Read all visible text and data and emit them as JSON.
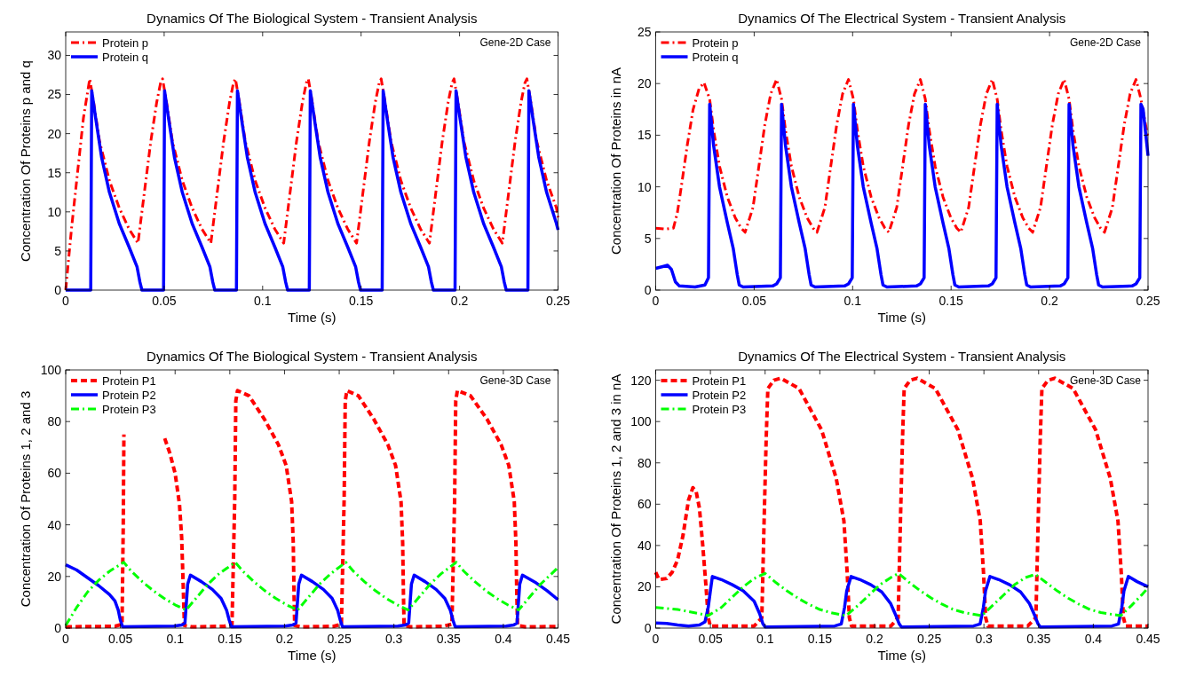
{
  "chart_data": [
    {
      "type": "line",
      "title": "Dynamics Of The Biological System - Transient Analysis",
      "xlabel": "Time (s)",
      "ylabel": "Concentration Of Proteins p and q",
      "annotations": [
        "Gene-2D Case"
      ],
      "xlim": [
        0,
        0.25
      ],
      "ylim": [
        0,
        33
      ],
      "xticks": [
        0,
        0.05,
        0.1,
        0.15,
        0.2,
        0.25
      ],
      "yticks": [
        0,
        5,
        10,
        15,
        20,
        25,
        30
      ],
      "legend": "top left",
      "series": [
        {
          "name": "Protein p",
          "color": "#ff0000",
          "line_style": "dashdot",
          "x": [
            0,
            0.003,
            0.006,
            0.009,
            0.0122,
            0.0142,
            0.0172,
            0.0222,
            0.0272,
            0.0322,
            0.0367,
            0.0382,
            0.0402,
            0.0432,
            0.0462,
            0.0482,
            0.0492,
            0.0512,
            0.0542,
            0.0592,
            0.0642,
            0.0692,
            0.0737,
            0.0752,
            0.0772,
            0.0802,
            0.0832,
            0.0852,
            0.0862,
            0.0882,
            0.0912,
            0.0962,
            0.1012,
            0.1062,
            0.1107,
            0.1122,
            0.1142,
            0.1172,
            0.1202,
            0.1222,
            0.1232,
            0.1252,
            0.1282,
            0.1332,
            0.1382,
            0.1432,
            0.1477,
            0.1492,
            0.1512,
            0.1542,
            0.1572,
            0.1592,
            0.1602,
            0.1622,
            0.1652,
            0.1702,
            0.1752,
            0.1802,
            0.1847,
            0.1862,
            0.1882,
            0.1912,
            0.1942,
            0.1962,
            0.1972,
            0.1992,
            0.2022,
            0.2072,
            0.2122,
            0.2172,
            0.2217,
            0.2232,
            0.2252,
            0.2282,
            0.2312,
            0.2332,
            0.2342,
            0.2362,
            0.2392,
            0.2442,
            0.2492,
            0.25
          ],
          "values": [
            0,
            8,
            15,
            22,
            27,
            24,
            19,
            14,
            10.5,
            7.8,
            6,
            9,
            13,
            19,
            24,
            26.5,
            27,
            24,
            19,
            14,
            10.5,
            7.8,
            6,
            9,
            13,
            19,
            24,
            26.5,
            27,
            24,
            19,
            14,
            10.5,
            7.8,
            6,
            9,
            13,
            19,
            24,
            26.5,
            27,
            24,
            19,
            14,
            10.5,
            7.8,
            6,
            9,
            13,
            19,
            24,
            26.5,
            27,
            24,
            19,
            14,
            10.5,
            7.8,
            6,
            9,
            13,
            19,
            24,
            26.5,
            27,
            24,
            19,
            14,
            10.5,
            7.8,
            6,
            9,
            13,
            19,
            24,
            26.5,
            27,
            24,
            19,
            14,
            10.5,
            9.3
          ]
        },
        {
          "name": "Protein q",
          "color": "#0000ff",
          "line_style": "solid",
          "x": [
            0,
            0.0127,
            0.0132,
            0.0152,
            0.0182,
            0.0222,
            0.0272,
            0.0322,
            0.0362,
            0.0377,
            0.0387,
            0.0497,
            0.0502,
            0.0522,
            0.0552,
            0.0592,
            0.0642,
            0.0692,
            0.0732,
            0.0747,
            0.0757,
            0.0867,
            0.0872,
            0.0892,
            0.0922,
            0.0962,
            0.1012,
            0.1062,
            0.1102,
            0.1117,
            0.1127,
            0.1237,
            0.1242,
            0.1262,
            0.1292,
            0.1332,
            0.1382,
            0.1432,
            0.1472,
            0.1487,
            0.1497,
            0.1607,
            0.1612,
            0.1632,
            0.1662,
            0.1702,
            0.1752,
            0.1802,
            0.1842,
            0.1857,
            0.1867,
            0.1977,
            0.1982,
            0.2002,
            0.2032,
            0.2072,
            0.2122,
            0.2172,
            0.2212,
            0.2227,
            0.2237,
            0.2347,
            0.2352,
            0.2372,
            0.2402,
            0.2442,
            0.2492,
            0.25
          ],
          "values": [
            0,
            0,
            25.5,
            22,
            17,
            12.5,
            8.5,
            5.5,
            3,
            1,
            0,
            0,
            25.5,
            22,
            17,
            12.5,
            8.5,
            5.5,
            3,
            1,
            0,
            0,
            25.5,
            22,
            17,
            12.5,
            8.5,
            5.5,
            3,
            1,
            0,
            0,
            25.5,
            22,
            17,
            12.5,
            8.5,
            5.5,
            3,
            1,
            0,
            0,
            25.5,
            22,
            17,
            12.5,
            8.5,
            5.5,
            3,
            1,
            0,
            0,
            25.5,
            22,
            17,
            12.5,
            8.5,
            5.5,
            3,
            1,
            0,
            0,
            25.5,
            22,
            17,
            12.5,
            8.5,
            7.7
          ]
        }
      ]
    },
    {
      "type": "line",
      "title": "Dynamics Of The Electrical System - Transient Analysis",
      "xlabel": "Time (s)",
      "ylabel": "Concentration Of Proteins in nA",
      "annotations": [
        "Gene-2D Case"
      ],
      "xlim": [
        0,
        0.25
      ],
      "ylim": [
        0,
        25
      ],
      "xticks": [
        0,
        0.05,
        0.1,
        0.15,
        0.2,
        0.25
      ],
      "yticks": [
        0,
        5,
        10,
        15,
        20,
        25
      ],
      "legend": "top left",
      "series": [
        {
          "name": "Protein p",
          "color": "#ff0000",
          "line_style": "dashdot",
          "x": [
            0,
            0.005,
            0.009,
            0.011,
            0.013,
            0.016,
            0.019,
            0.022,
            0.0245,
            0.0274,
            0.0294,
            0.0324,
            0.0364,
            0.0404,
            0.0434,
            0.0454,
            0.0494,
            0.0524,
            0.0554,
            0.0584,
            0.0614,
            0.0639,
            0.0659,
            0.0689,
            0.0729,
            0.0769,
            0.0799,
            0.0819,
            0.0859,
            0.0889,
            0.0919,
            0.0949,
            0.0979,
            0.1004,
            0.1024,
            0.1054,
            0.1094,
            0.1134,
            0.1164,
            0.1184,
            0.1224,
            0.1254,
            0.1284,
            0.1314,
            0.1344,
            0.1369,
            0.1389,
            0.1419,
            0.1459,
            0.1499,
            0.1529,
            0.1549,
            0.1589,
            0.1619,
            0.1649,
            0.1679,
            0.1709,
            0.1734,
            0.1754,
            0.1784,
            0.1824,
            0.1864,
            0.1894,
            0.1914,
            0.1954,
            0.1984,
            0.2014,
            0.2044,
            0.2074,
            0.2099,
            0.2119,
            0.2149,
            0.2189,
            0.2229,
            0.2259,
            0.2279,
            0.2319,
            0.2349,
            0.2379,
            0.2409,
            0.2439,
            0.2464,
            0.25
          ],
          "values": [
            6,
            5.9,
            6,
            7.5,
            10,
            14,
            17.5,
            19.5,
            20.1,
            18.5,
            15.5,
            12,
            9,
            7,
            6,
            5.6,
            8,
            12,
            16,
            19,
            20.4,
            18.5,
            15.5,
            12,
            9,
            7,
            6,
            5.6,
            8,
            12,
            16,
            19,
            20.4,
            18.5,
            15.5,
            12,
            9,
            7,
            6,
            5.6,
            8,
            12,
            16,
            19,
            20.4,
            18.5,
            15.5,
            12,
            9,
            7,
            6,
            5.6,
            8,
            12,
            16,
            19,
            20.4,
            18.5,
            15.5,
            12,
            9,
            7,
            6,
            5.6,
            8,
            12,
            16,
            19,
            20.4,
            18.5,
            15.5,
            12,
            9,
            7,
            6,
            5.6,
            8,
            12,
            16,
            19,
            20.4,
            18.5,
            14.7
          ]
        },
        {
          "name": "Protein q",
          "color": "#0000ff",
          "line_style": "solid",
          "x": [
            0,
            0.004,
            0.006,
            0.008,
            0.01,
            0.012,
            0.02,
            0.025,
            0.0268,
            0.0274,
            0.0294,
            0.0324,
            0.0364,
            0.0394,
            0.0414,
            0.0424,
            0.0444,
            0.0594,
            0.0614,
            0.0633,
            0.0639,
            0.0659,
            0.0689,
            0.0729,
            0.0759,
            0.0779,
            0.0789,
            0.0809,
            0.0959,
            0.0979,
            0.0998,
            0.1004,
            0.1024,
            0.1054,
            0.1094,
            0.1124,
            0.1144,
            0.1154,
            0.1174,
            0.1324,
            0.1344,
            0.1363,
            0.1369,
            0.1389,
            0.1419,
            0.1459,
            0.1489,
            0.1509,
            0.1519,
            0.1539,
            0.1689,
            0.1709,
            0.1728,
            0.1734,
            0.1754,
            0.1784,
            0.1824,
            0.1854,
            0.1874,
            0.1884,
            0.1904,
            0.2054,
            0.2074,
            0.2093,
            0.2099,
            0.2119,
            0.2149,
            0.2189,
            0.2219,
            0.2239,
            0.2249,
            0.2269,
            0.2419,
            0.2439,
            0.2458,
            0.2464,
            0.2475,
            0.25
          ],
          "values": [
            2.1,
            2.3,
            2.4,
            2,
            0.8,
            0.4,
            0.3,
            0.5,
            1.2,
            18,
            14,
            10,
            6.5,
            4,
            1.5,
            0.5,
            0.3,
            0.4,
            0.6,
            1.2,
            18,
            14,
            10,
            6.5,
            4,
            1.5,
            0.5,
            0.3,
            0.4,
            0.6,
            1.2,
            18,
            14,
            10,
            6.5,
            4,
            1.5,
            0.5,
            0.3,
            0.4,
            0.6,
            1.2,
            18,
            14,
            10,
            6.5,
            4,
            1.5,
            0.5,
            0.3,
            0.4,
            0.6,
            1.2,
            18,
            14,
            10,
            6.5,
            4,
            1.5,
            0.5,
            0.3,
            0.4,
            0.6,
            1.2,
            18,
            14,
            10,
            6.5,
            4,
            1.5,
            0.5,
            0.3,
            0.4,
            0.6,
            1.2,
            18,
            17.5,
            13
          ]
        }
      ]
    },
    {
      "type": "line",
      "title": "Dynamics Of The Biological System - Transient Analysis",
      "xlabel": "Time (s)",
      "ylabel": "Concentration Of Proteins 1, 2 and 3",
      "annotations": [
        "Gene-3D Case"
      ],
      "xlim": [
        0,
        0.45
      ],
      "ylim": [
        0,
        100
      ],
      "xticks": [
        0,
        0.05,
        0.1,
        0.15,
        0.2,
        0.25,
        0.3,
        0.35,
        0.4,
        0.45
      ],
      "yticks": [
        0,
        20,
        40,
        60,
        80,
        100
      ],
      "legend": "top left",
      "series": [
        {
          "name": "Protein P1",
          "color": "#ff0000",
          "line_style": "dashed",
          "x": [
            0,
            0.045,
            0.0515,
            0.0526,
            0.0532,
            0.0535,
            0.0905,
            0.095,
            0.1,
            0.104,
            0.106,
            0.1075,
            0.1085,
            0.115,
            0.145,
            0.152,
            0.1545,
            0.1555,
            0.157,
            0.1675,
            0.1815,
            0.1945,
            0.2015,
            0.2065,
            0.208,
            0.2087,
            0.2093,
            0.215,
            0.245,
            0.252,
            0.2545,
            0.2555,
            0.257,
            0.2675,
            0.2815,
            0.2945,
            0.3015,
            0.3065,
            0.308,
            0.3087,
            0.3093,
            0.315,
            0.345,
            0.353,
            0.3555,
            0.3565,
            0.358,
            0.37,
            0.385,
            0.398,
            0.405,
            0.41,
            0.4115,
            0.4123,
            0.413,
            0.42,
            0.45
          ],
          "values": [
            0.5,
            0.7,
            1.5,
            40,
            75,
            null,
            73.5,
            68,
            60,
            48,
            35,
            15,
            1,
            0.5,
            0.7,
            1.5,
            50,
            88,
            92,
            90,
            81,
            71,
            63,
            49,
            33,
            13,
            1,
            0.5,
            0.7,
            1.5,
            50,
            88,
            92,
            90,
            81,
            71,
            63,
            49,
            33,
            13,
            1,
            0.5,
            0.7,
            1.5,
            50,
            88,
            92,
            90,
            81,
            71,
            63,
            49,
            33,
            13,
            1,
            0.5,
            0.6
          ]
        },
        {
          "name": "Protein P2",
          "color": "#0000ff",
          "line_style": "solid",
          "x": [
            0,
            0.01,
            0.02,
            0.03,
            0.04,
            0.045,
            0.048,
            0.05,
            0.052,
            0.099,
            0.106,
            0.109,
            0.11,
            0.1115,
            0.114,
            0.124,
            0.134,
            0.142,
            0.147,
            0.1495,
            0.1515,
            0.2005,
            0.2075,
            0.2105,
            0.2115,
            0.213,
            0.2155,
            0.2255,
            0.2355,
            0.2435,
            0.2485,
            0.251,
            0.253,
            0.3035,
            0.3105,
            0.3135,
            0.3145,
            0.316,
            0.3185,
            0.3285,
            0.3385,
            0.3465,
            0.3515,
            0.354,
            0.356,
            0.4025,
            0.4095,
            0.4125,
            0.4135,
            0.415,
            0.4175,
            0.43,
            0.44,
            0.45
          ],
          "values": [
            24.5,
            22.5,
            19.5,
            16.5,
            13,
            10.5,
            7,
            3,
            0.5,
            0.8,
            1.2,
            2,
            8,
            17,
            20.5,
            18,
            15,
            11.5,
            7,
            3,
            0.5,
            0.8,
            1.2,
            2,
            8,
            17,
            20.5,
            18,
            15,
            11.5,
            7,
            3,
            0.5,
            0.8,
            1.2,
            2,
            8,
            17,
            20.5,
            18,
            15,
            11.5,
            7,
            3,
            0.5,
            0.8,
            1.2,
            2,
            8,
            17,
            20.5,
            17.5,
            14.5,
            11
          ]
        },
        {
          "name": "Protein P3",
          "color": "#00ff00",
          "line_style": "dashdot",
          "x": [
            0,
            0.01,
            0.02,
            0.03,
            0.04,
            0.053,
            0.06,
            0.07,
            0.08,
            0.09,
            0.1,
            0.11,
            0.12,
            0.13,
            0.14,
            0.155,
            0.162,
            0.172,
            0.182,
            0.192,
            0.202,
            0.212,
            0.222,
            0.232,
            0.242,
            0.256,
            0.263,
            0.273,
            0.283,
            0.293,
            0.303,
            0.313,
            0.323,
            0.333,
            0.343,
            0.357,
            0.364,
            0.374,
            0.384,
            0.394,
            0.404,
            0.414,
            0.424,
            0.434,
            0.444,
            0.45
          ],
          "values": [
            1,
            8,
            14,
            18.5,
            22,
            25.5,
            22,
            18,
            14.5,
            11.5,
            9,
            7,
            12,
            17,
            21,
            25.5,
            22,
            18,
            14.5,
            11.5,
            9,
            7,
            12,
            17,
            21,
            25.5,
            22,
            18,
            14.5,
            11.5,
            9,
            7,
            12,
            17,
            21,
            25.5,
            22,
            18,
            14.5,
            11.5,
            9,
            7,
            12,
            17,
            21,
            23.5
          ]
        }
      ]
    },
    {
      "type": "line",
      "title": "Dynamics Of The Electrical System - Transient Analysis",
      "xlabel": "Time (s)",
      "ylabel": "Concentration Of Proteins 1, 2 and 3 in nA",
      "annotations": [
        "Gene-3D Case"
      ],
      "xlim": [
        0,
        0.45
      ],
      "ylim": [
        0,
        125
      ],
      "xticks": [
        0,
        0.05,
        0.1,
        0.15,
        0.2,
        0.25,
        0.3,
        0.35,
        0.4,
        0.45
      ],
      "yticks": [
        0,
        20,
        40,
        60,
        80,
        100,
        120
      ],
      "legend": "top left",
      "series": [
        {
          "name": "Protein P1",
          "color": "#ff0000",
          "line_style": "dashed",
          "x": [
            0,
            0.003,
            0.01,
            0.015,
            0.02,
            0.025,
            0.03,
            0.034,
            0.037,
            0.04,
            0.043,
            0.046,
            0.048,
            0.05,
            0.09,
            0.097,
            0.099,
            0.101,
            0.1025,
            0.108,
            0.1143,
            0.131,
            0.1516,
            0.165,
            0.172,
            0.175,
            0.177,
            0.179,
            0.215,
            0.2216,
            0.2236,
            0.2256,
            0.2271,
            0.2326,
            0.2389,
            0.2556,
            0.2762,
            0.2896,
            0.2966,
            0.2996,
            0.3016,
            0.3036,
            0.34,
            0.3475,
            0.3495,
            0.3515,
            0.353,
            0.3585,
            0.3648,
            0.3815,
            0.4021,
            0.4155,
            0.4225,
            0.4255,
            0.4275,
            0.4295,
            0.45
          ],
          "values": [
            27,
            23.5,
            24,
            27,
            33,
            45,
            62,
            68,
            66,
            58,
            40,
            20,
            5,
            1,
            1,
            5,
            50,
            92,
            116,
            120,
            121,
            116,
            96,
            72.5,
            52,
            27,
            5,
            1,
            1,
            5,
            50,
            92,
            116,
            120,
            121,
            116,
            96,
            72.5,
            52,
            27,
            5,
            1,
            1,
            5,
            50,
            92,
            116,
            120,
            121,
            116,
            96,
            72.5,
            52,
            27,
            5,
            1,
            1
          ]
        },
        {
          "name": "Protein P2",
          "color": "#0000ff",
          "line_style": "solid",
          "x": [
            0,
            0.01,
            0.02,
            0.03,
            0.04,
            0.045,
            0.048,
            0.05,
            0.0518,
            0.06,
            0.07,
            0.08,
            0.09,
            0.095,
            0.098,
            0.1,
            0.1636,
            0.1696,
            0.1726,
            0.1746,
            0.1786,
            0.1866,
            0.1966,
            0.2066,
            0.2146,
            0.2196,
            0.2226,
            0.2246,
            0.2905,
            0.2965,
            0.2995,
            0.3015,
            0.3055,
            0.3135,
            0.3235,
            0.3335,
            0.3415,
            0.3465,
            0.3495,
            0.3515,
            0.417,
            0.423,
            0.426,
            0.428,
            0.432,
            0.44,
            0.45
          ],
          "values": [
            2.5,
            2.3,
            1.5,
            1,
            1.5,
            3,
            10,
            18,
            25,
            23.5,
            21,
            18,
            13,
            7,
            2,
            0.5,
            1,
            2,
            10,
            18,
            25,
            23.5,
            21,
            17.5,
            12,
            6,
            2,
            0.5,
            1,
            2,
            10,
            18,
            25,
            23.5,
            21,
            17.5,
            12,
            6,
            2,
            0.5,
            1,
            2,
            10,
            18,
            25,
            22.5,
            20
          ]
        },
        {
          "name": "Protein P3",
          "color": "#00ff00",
          "line_style": "dashdot",
          "x": [
            0,
            0.01,
            0.02,
            0.03,
            0.04,
            0.048,
            0.06,
            0.07,
            0.08,
            0.09,
            0.1,
            0.11,
            0.12,
            0.13,
            0.14,
            0.15,
            0.16,
            0.174,
            0.185,
            0.195,
            0.205,
            0.215,
            0.222,
            0.232,
            0.242,
            0.252,
            0.262,
            0.272,
            0.282,
            0.298,
            0.308,
            0.318,
            0.328,
            0.338,
            0.347,
            0.357,
            0.367,
            0.377,
            0.387,
            0.397,
            0.407,
            0.425,
            0.435,
            0.445,
            0.45
          ],
          "values": [
            10,
            9.5,
            9,
            8,
            7,
            6,
            10,
            15,
            20,
            24,
            26.5,
            22,
            18,
            14.5,
            11.5,
            9,
            7.5,
            6,
            11,
            16,
            21,
            24.5,
            26.5,
            22,
            18,
            14.5,
            11.5,
            9,
            7.5,
            6,
            11,
            16,
            21,
            24.5,
            26,
            22,
            18,
            14.5,
            11.5,
            9,
            7.5,
            6,
            11,
            16.5,
            19.5
          ]
        }
      ]
    }
  ]
}
